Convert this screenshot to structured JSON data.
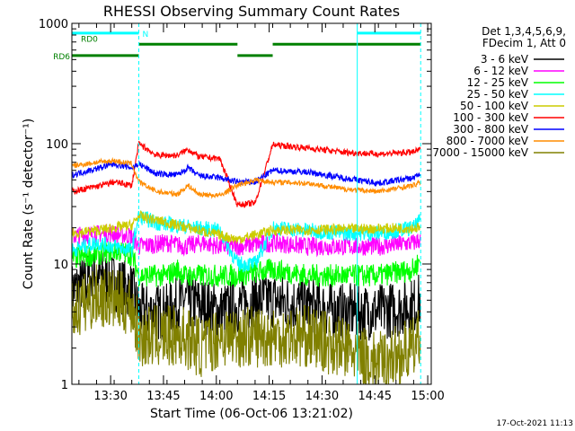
{
  "chart_data": {
    "type": "line",
    "title": "RHESSI Observing Summary Count Rates",
    "xlabel": "Start Time (06-Oct-06 13:21:02)",
    "ylabel": "Count Rate (s⁻¹ detector⁻¹)",
    "yscale": "log",
    "ylim": [
      1,
      1000
    ],
    "y_ticks": [
      "1",
      "10",
      "100",
      "1000"
    ],
    "xlim_minutes": [
      -2,
      100
    ],
    "x_ticks": [
      {
        "label": "13:30",
        "m": 9
      },
      {
        "label": "13:45",
        "m": 24
      },
      {
        "label": "14:00",
        "m": 39
      },
      {
        "label": "14:15",
        "m": 54
      },
      {
        "label": "14:30",
        "m": 69
      },
      {
        "label": "14:45",
        "m": 84
      },
      {
        "label": "15:00",
        "m": 99
      }
    ],
    "legend_header": [
      "Det 1,3,4,5,6,9,",
      "FDecim 1, Att 0"
    ],
    "legend_position": "right",
    "timestamp": "17-Oct-2021 11:13",
    "boundaries_minutes": {
      "dashed": [
        17,
        97
      ],
      "solid": [
        79
      ]
    },
    "flags": [
      {
        "label": "N",
        "color": "#00ffff",
        "segments": [
          [
            -2,
            17
          ],
          [
            79,
            97
          ]
        ],
        "level": 830
      },
      {
        "label": "RD0",
        "color": "#008000",
        "segments": [
          [
            17,
            45
          ],
          [
            55,
            97
          ]
        ],
        "level": 670
      },
      {
        "label": "RD6",
        "color": "#008000",
        "segments": [
          [
            -2,
            17
          ],
          [
            45,
            55
          ]
        ],
        "level": 540
      }
    ],
    "series": [
      {
        "name": "3 - 6 keV",
        "color": "#000000",
        "noise": 0.55,
        "values": [
          [
            -2,
            6
          ],
          [
            5,
            8
          ],
          [
            10,
            7
          ],
          [
            15,
            6
          ],
          [
            17,
            4
          ],
          [
            25,
            4
          ],
          [
            30,
            5
          ],
          [
            35,
            4.5
          ],
          [
            40,
            4
          ],
          [
            45,
            4.5
          ],
          [
            50,
            5
          ],
          [
            55,
            5
          ],
          [
            65,
            4.5
          ],
          [
            75,
            4
          ],
          [
            79,
            4
          ],
          [
            85,
            4
          ],
          [
            95,
            4.5
          ],
          [
            97,
            5
          ]
        ]
      },
      {
        "name": "6 - 12 keV",
        "color": "#ff00ff",
        "noise": 0.18,
        "values": [
          [
            -2,
            17
          ],
          [
            8,
            18
          ],
          [
            15,
            17
          ],
          [
            17,
            14
          ],
          [
            25,
            15
          ],
          [
            30,
            14
          ],
          [
            35,
            15
          ],
          [
            40,
            14
          ],
          [
            45,
            14
          ],
          [
            55,
            15
          ],
          [
            65,
            14
          ],
          [
            75,
            14
          ],
          [
            85,
            14
          ],
          [
            95,
            15
          ],
          [
            97,
            16
          ]
        ]
      },
      {
        "name": "12 - 25 keV",
        "color": "#00ff00",
        "noise": 0.22,
        "values": [
          [
            -2,
            11
          ],
          [
            5,
            12
          ],
          [
            10,
            13
          ],
          [
            15,
            12
          ],
          [
            17,
            8
          ],
          [
            25,
            8
          ],
          [
            28,
            9
          ],
          [
            30,
            8
          ],
          [
            35,
            8
          ],
          [
            40,
            8
          ],
          [
            45,
            8
          ],
          [
            55,
            9
          ],
          [
            65,
            8
          ],
          [
            75,
            8
          ],
          [
            85,
            8
          ],
          [
            95,
            9
          ],
          [
            97,
            11
          ]
        ]
      },
      {
        "name": "25 - 50 keV",
        "color": "#00ffff",
        "noise": 0.15,
        "values": [
          [
            -2,
            13
          ],
          [
            5,
            15
          ],
          [
            10,
            14
          ],
          [
            15,
            13
          ],
          [
            17,
            25
          ],
          [
            22,
            22
          ],
          [
            28,
            21
          ],
          [
            33,
            20
          ],
          [
            40,
            19
          ],
          [
            45,
            10
          ],
          [
            50,
            10
          ],
          [
            55,
            20
          ],
          [
            65,
            19
          ],
          [
            75,
            18
          ],
          [
            85,
            18
          ],
          [
            95,
            20
          ],
          [
            97,
            23
          ]
        ]
      },
      {
        "name": "50 - 100 keV",
        "color": "#cccc00",
        "noise": 0.1,
        "values": [
          [
            -2,
            18
          ],
          [
            5,
            19
          ],
          [
            10,
            20
          ],
          [
            15,
            21
          ],
          [
            17,
            25
          ],
          [
            45,
            16
          ],
          [
            55,
            19
          ],
          [
            97,
            20
          ]
        ]
      },
      {
        "name": "100 - 300 keV",
        "color": "#ff0000",
        "noise": 0.06,
        "values": [
          [
            -2,
            40
          ],
          [
            5,
            44
          ],
          [
            10,
            48
          ],
          [
            15,
            45
          ],
          [
            17,
            100
          ],
          [
            22,
            80
          ],
          [
            28,
            80
          ],
          [
            31,
            90
          ],
          [
            34,
            78
          ],
          [
            40,
            75
          ],
          [
            45,
            31
          ],
          [
            50,
            32
          ],
          [
            55,
            98
          ],
          [
            65,
            92
          ],
          [
            75,
            85
          ],
          [
            85,
            82
          ],
          [
            95,
            85
          ],
          [
            97,
            90
          ]
        ]
      },
      {
        "name": "300 - 800 keV",
        "color": "#0000ff",
        "noise": 0.06,
        "values": [
          [
            -2,
            55
          ],
          [
            5,
            62
          ],
          [
            10,
            68
          ],
          [
            15,
            63
          ],
          [
            17,
            68
          ],
          [
            22,
            56
          ],
          [
            28,
            55
          ],
          [
            31,
            63
          ],
          [
            34,
            54
          ],
          [
            40,
            52
          ],
          [
            45,
            48
          ],
          [
            50,
            48
          ],
          [
            55,
            60
          ],
          [
            65,
            58
          ],
          [
            75,
            52
          ],
          [
            85,
            47
          ],
          [
            95,
            52
          ],
          [
            97,
            57
          ]
        ]
      },
      {
        "name": "800 - 7000 keV",
        "color": "#ff8c00",
        "noise": 0.05,
        "values": [
          [
            -2,
            65
          ],
          [
            5,
            70
          ],
          [
            10,
            72
          ],
          [
            15,
            68
          ],
          [
            17,
            48
          ],
          [
            22,
            40
          ],
          [
            28,
            38
          ],
          [
            31,
            45
          ],
          [
            34,
            38
          ],
          [
            40,
            37
          ],
          [
            45,
            45
          ],
          [
            50,
            50
          ],
          [
            55,
            48
          ],
          [
            65,
            47
          ],
          [
            75,
            42
          ],
          [
            85,
            40
          ],
          [
            95,
            45
          ],
          [
            97,
            48
          ]
        ]
      },
      {
        "name": "7000 - 15000 keV",
        "color": "#808000",
        "noise": 0.6,
        "values": [
          [
            -2,
            4
          ],
          [
            5,
            5.5
          ],
          [
            10,
            5
          ],
          [
            15,
            4.5
          ],
          [
            17,
            2.5
          ],
          [
            25,
            2.5
          ],
          [
            30,
            2.5
          ],
          [
            35,
            2
          ],
          [
            40,
            2.5
          ],
          [
            45,
            2.5
          ],
          [
            55,
            2.5
          ],
          [
            65,
            2.5
          ],
          [
            75,
            2
          ],
          [
            85,
            1.5
          ],
          [
            95,
            2
          ],
          [
            97,
            2.5
          ]
        ]
      }
    ]
  }
}
